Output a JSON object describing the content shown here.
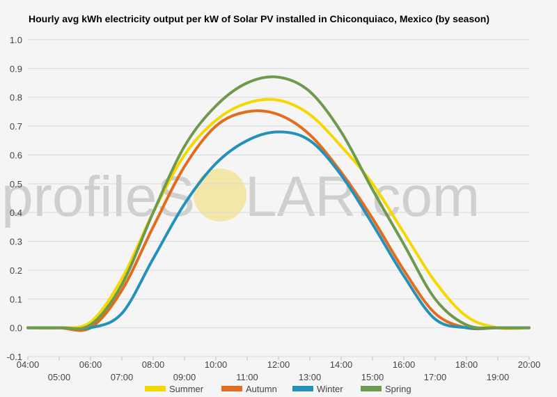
{
  "chart_data": {
    "type": "line",
    "title": "Hourly avg kWh electricity output per kW of Solar PV installed in Chiconquiaco, Mexico (by season)",
    "watermark": {
      "prefix": "profileS",
      "suffix": "LAR.com",
      "sun_color": "#f2e6a8"
    },
    "ylim": [
      -0.1,
      1.0
    ],
    "yticks": [
      "-0.1",
      "0.0",
      "0.1",
      "0.2",
      "0.3",
      "0.4",
      "0.5",
      "0.6",
      "0.7",
      "0.8",
      "0.9",
      "1.0"
    ],
    "x": [
      4,
      5,
      6,
      7,
      8,
      9,
      10,
      11,
      12,
      13,
      14,
      15,
      16,
      17,
      18,
      19,
      20
    ],
    "xtick_labels": [
      "04:00",
      "05:00",
      "06:00",
      "07:00",
      "08:00",
      "09:00",
      "10:00",
      "11:00",
      "12:00",
      "13:00",
      "14:00",
      "15:00",
      "16:00",
      "17:00",
      "18:00",
      "19:00",
      "20:00"
    ],
    "grid": true,
    "legend_position": "bottom",
    "series": [
      {
        "name": "Summer",
        "color": "#f5d800",
        "values": [
          0.0,
          0.0,
          0.02,
          0.17,
          0.4,
          0.6,
          0.72,
          0.78,
          0.79,
          0.74,
          0.63,
          0.5,
          0.33,
          0.16,
          0.04,
          0.0,
          0.0
        ]
      },
      {
        "name": "Autumn",
        "color": "#e36d1e",
        "values": [
          0.0,
          0.0,
          0.0,
          0.13,
          0.35,
          0.56,
          0.7,
          0.75,
          0.74,
          0.67,
          0.54,
          0.38,
          0.2,
          0.05,
          0.0,
          0.0,
          0.0
        ]
      },
      {
        "name": "Winter",
        "color": "#2491bb",
        "values": [
          0.0,
          0.0,
          0.0,
          0.05,
          0.24,
          0.43,
          0.57,
          0.65,
          0.68,
          0.65,
          0.53,
          0.36,
          0.18,
          0.03,
          0.0,
          0.0,
          0.0
        ]
      },
      {
        "name": "Spring",
        "color": "#6e9a4e",
        "values": [
          0.0,
          0.0,
          0.01,
          0.15,
          0.4,
          0.63,
          0.77,
          0.85,
          0.87,
          0.82,
          0.68,
          0.48,
          0.29,
          0.1,
          0.01,
          0.0,
          0.0
        ]
      }
    ]
  }
}
